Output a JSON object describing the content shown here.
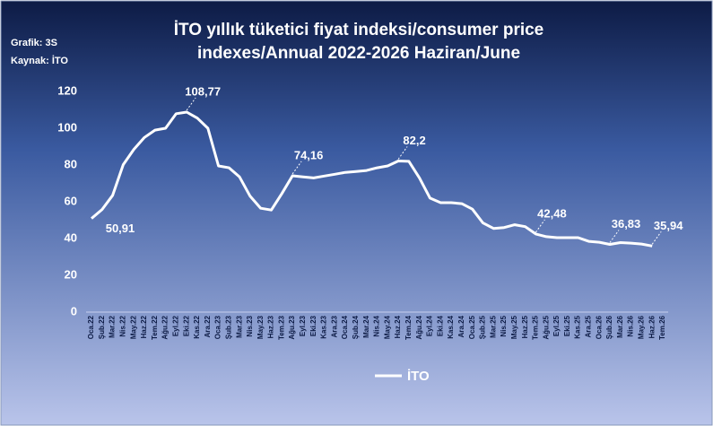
{
  "chart_data": {
    "type": "line",
    "title": [
      "İTO yıllık tüketici fiyat indeksi/consumer price",
      "indexes/Annual  2022-2026 Haziran/June"
    ],
    "notes": [
      "Grafik: 3S",
      "Kaynak: İTO"
    ],
    "categories": [
      "Oca.22",
      "Şub.22",
      "Mar.22",
      "Nis.22",
      "May.22",
      "Haz.22",
      "Tem.22",
      "Ağu.22",
      "Eyl.22",
      "Eki.22",
      "Kas.22",
      "Ara.22",
      "Oca.23",
      "Şub.23",
      "Mar.23",
      "Nis.23",
      "May.23",
      "Haz.23",
      "Tem.23",
      "Ağu.23",
      "Eyl.23",
      "Eki.23",
      "Kas.23",
      "Ara.23",
      "Oca.24",
      "Şub.24",
      "Mar.24",
      "Nis.24",
      "May.24",
      "Haz.24",
      "Tem.24",
      "Ağu.24",
      "Eyl.24",
      "Eki.24",
      "Kas.24",
      "Ara.24",
      "Oca.25",
      "Şub.25",
      "Mar.25",
      "Nis.25",
      "May.25",
      "Haz.25",
      "Tem.25",
      "Ağu.25",
      "Eyl.25",
      "Eki.25",
      "Kas.25",
      "Ara.25",
      "Oca.26",
      "Şub.26",
      "Mar.26",
      "Nis.26",
      "May.26",
      "Haz.26",
      "Tem.26"
    ],
    "series": [
      {
        "name": "İTO",
        "color": "#ffffff",
        "values": [
          50.91,
          55.8,
          63.5,
          80.2,
          88.5,
          95,
          99,
          100,
          107.9,
          108.77,
          105.5,
          100,
          79.5,
          78.5,
          73.5,
          63,
          56.5,
          55.5,
          64.5,
          74.16,
          73.5,
          73,
          74,
          75,
          76,
          76.5,
          77,
          78.5,
          79.5,
          82.2,
          82,
          73,
          62,
          59.5,
          59.5,
          59,
          56,
          48.5,
          45.5,
          46,
          47.5,
          46.5,
          42.48,
          41,
          40.5,
          40.5,
          40.5,
          38.5,
          38,
          36.83,
          37.8,
          37.5,
          37,
          35.94,
          null
        ],
        "value_labels": [
          "50,91",
          null,
          null,
          null,
          null,
          null,
          null,
          null,
          null,
          "108,77",
          null,
          null,
          null,
          null,
          null,
          null,
          null,
          null,
          null,
          "74,16",
          null,
          null,
          null,
          null,
          null,
          null,
          null,
          null,
          null,
          "82,2",
          null,
          null,
          null,
          null,
          null,
          null,
          null,
          null,
          null,
          null,
          null,
          null,
          "42,48",
          null,
          null,
          null,
          null,
          null,
          null,
          "36,83",
          null,
          null,
          null,
          "35,94",
          null
        ]
      }
    ],
    "ylim": [
      0,
      120
    ],
    "yticks": [
      0,
      20,
      40,
      60,
      80,
      100,
      120
    ],
    "grid": false,
    "legend": "bottom"
  }
}
